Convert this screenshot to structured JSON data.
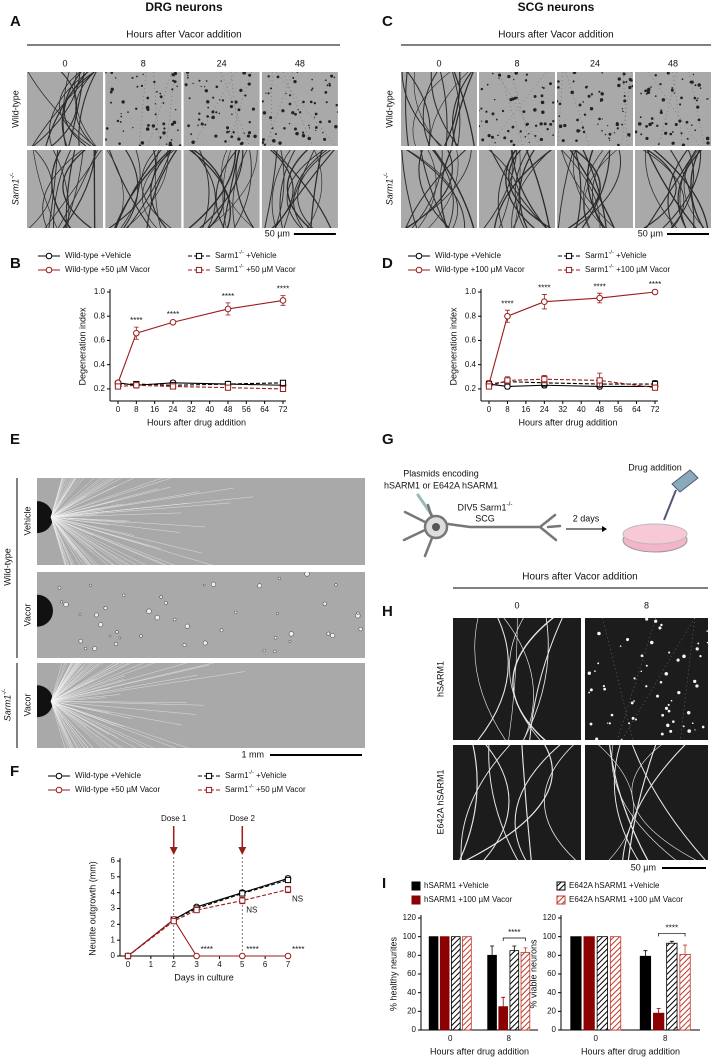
{
  "figure": {
    "panel_letters": [
      "A",
      "B",
      "C",
      "D",
      "E",
      "F",
      "G",
      "H",
      "I"
    ],
    "A": {
      "title": "DRG neurons",
      "header": "Hours after Vacor addition",
      "columns": [
        "0",
        "8",
        "24",
        "48"
      ],
      "rows": [
        "Wild-type",
        "Sarm1-/-"
      ],
      "scale_bar": "50 µm"
    },
    "C": {
      "title": "SCG neurons",
      "header": "Hours after Vacor addition",
      "columns": [
        "0",
        "8",
        "24",
        "48"
      ],
      "rows": [
        "Wild-type",
        "Sarm1-/-"
      ],
      "scale_bar": "50 µm"
    },
    "E": {
      "group_label": "Wild-type",
      "rows": [
        "Vehicle",
        "Vacor",
        "Vacor"
      ],
      "knockout_label": "Sarm1-/-",
      "scale_bar": "1 mm"
    },
    "G": {
      "plasmid_lines": [
        "Plasmids encoding",
        "hSARM1 or E642A hSARM1"
      ],
      "cell_lines": [
        "DIV5 Sarm1-/-",
        "SCG"
      ],
      "step": "2 days",
      "end": "Drug addition"
    },
    "H": {
      "header": "Hours after Vacor addition",
      "columns": [
        "0",
        "8"
      ],
      "rows": [
        "hSARM1",
        "E642A hSARM1"
      ],
      "scale_bar": "50 µm"
    }
  },
  "chart_data": [
    {
      "type": "line",
      "xlabel": "Hours after drug addition",
      "ylabel": "Degeneration index",
      "x": [
        0,
        8,
        24,
        48,
        72
      ],
      "xlim": [
        0,
        72
      ],
      "xticks": [
        0,
        8,
        16,
        24,
        32,
        40,
        48,
        56,
        64,
        72
      ],
      "ylim": [
        0.1,
        1
      ],
      "yticks": [
        0.2,
        0.4,
        0.6,
        0.8,
        {
          "value": 1,
          "label": "1.0"
        }
      ],
      "series": [
        {
          "name": "Wild-type +Vehicle",
          "color": "#000000",
          "dash": false,
          "marker": "circle",
          "values": [
            0.25,
            0.23,
            0.25,
            0.24,
            0.23
          ],
          "errors": [
            0.02,
            0.02,
            0.02,
            0.02,
            0.02
          ]
        },
        {
          "name": "Sarm1-/- +Vehicle",
          "color": "#000000",
          "dash": true,
          "marker": "square",
          "values": [
            0.24,
            0.24,
            0.23,
            0.24,
            0.25
          ],
          "errors": [
            0.02,
            0.02,
            0.02,
            0.02,
            0.02
          ]
        },
        {
          "name": "Wild-type +50 µM Vacor",
          "color": "#9b1c1c",
          "dash": false,
          "marker": "circle",
          "values": [
            0.25,
            0.66,
            0.75,
            0.86,
            0.93
          ],
          "errors": [
            0.02,
            0.05,
            0.01,
            0.05,
            0.04
          ]
        },
        {
          "name": "Sarm1-/- +50 µM Vacor",
          "color": "#9b1c1c",
          "dash": true,
          "marker": "square",
          "values": [
            0.22,
            0.23,
            0.22,
            0.21,
            0.2
          ],
          "errors": [
            0.02,
            0.02,
            0.02,
            0.02,
            0.02
          ]
        }
      ],
      "annotations": [
        {
          "text": "****",
          "x": 8,
          "series": 2,
          "side": "above"
        },
        {
          "text": "****",
          "x": 24,
          "series": 2,
          "side": "above"
        },
        {
          "text": "****",
          "x": 48,
          "series": 2,
          "side": "above"
        },
        {
          "text": "****",
          "x": 72,
          "series": 2,
          "side": "above"
        }
      ]
    },
    {
      "type": "line",
      "xlabel": "Hours after drug addition",
      "ylabel": "Degeneration index",
      "x": [
        0,
        8,
        24,
        48,
        72
      ],
      "xlim": [
        0,
        72
      ],
      "xticks": [
        0,
        8,
        16,
        24,
        32,
        40,
        48,
        56,
        64,
        72
      ],
      "ylim": [
        0.1,
        1
      ],
      "yticks": [
        0.2,
        0.4,
        0.6,
        0.8,
        {
          "value": 1,
          "label": "1.0"
        }
      ],
      "series": [
        {
          "name": "Wild-type +Vehicle",
          "color": "#000000",
          "dash": false,
          "marker": "circle",
          "values": [
            0.24,
            0.22,
            0.23,
            0.22,
            0.22
          ],
          "errors": [
            0.02,
            0.02,
            0.02,
            0.02,
            0.02
          ]
        },
        {
          "name": "Sarm1-/- +Vehicle",
          "color": "#000000",
          "dash": true,
          "marker": "square",
          "values": [
            0.24,
            0.26,
            0.25,
            0.24,
            0.24
          ],
          "errors": [
            0.02,
            0.02,
            0.03,
            0.02,
            0.03
          ]
        },
        {
          "name": "Wild-type +100 µM Vacor",
          "color": "#9b1c1c",
          "dash": false,
          "marker": "circle",
          "values": [
            0.24,
            0.8,
            0.92,
            0.95,
            1
          ],
          "errors": [
            0.03,
            0.05,
            0.06,
            0.04,
            0.01
          ]
        },
        {
          "name": "Sarm1-/- +100 µM Vacor",
          "color": "#9b1c1c",
          "dash": true,
          "marker": "square",
          "values": [
            0.22,
            0.27,
            0.28,
            0.27,
            0.21
          ],
          "errors": [
            0.02,
            0.03,
            0.03,
            0.06,
            0.02
          ]
        }
      ],
      "annotations": [
        {
          "text": "****",
          "x": 8,
          "series": 2,
          "side": "above"
        },
        {
          "text": "****",
          "x": 24,
          "series": 2,
          "side": "above"
        },
        {
          "text": "****",
          "x": 48,
          "series": 2,
          "side": "above"
        },
        {
          "text": "****",
          "x": 72,
          "series": 2,
          "side": "above"
        }
      ]
    },
    {
      "type": "line",
      "xlabel": "Days in culture",
      "ylabel": "Neurite outgrowth (mm)",
      "x": [
        0,
        2,
        3,
        5,
        7
      ],
      "xlim": [
        0,
        7
      ],
      "xticks": [
        0,
        1,
        2,
        3,
        4,
        5,
        6,
        7
      ],
      "ylim": [
        0,
        6
      ],
      "yticks": [
        0,
        1,
        2,
        3,
        4,
        5,
        6
      ],
      "doses": [
        {
          "label": "Dose 1",
          "x": 2,
          "color": "#9b1c1c"
        },
        {
          "label": "Dose 2",
          "x": 5,
          "color": "#9b1c1c"
        }
      ],
      "series": [
        {
          "name": "Wild-type +Vehicle",
          "color": "#000000",
          "dash": false,
          "marker": "circle",
          "values": [
            0,
            2.3,
            3.1,
            4,
            4.9
          ],
          "errors": [
            0,
            0.1,
            0.1,
            0.15,
            0.15
          ]
        },
        {
          "name": "Sarm1-/- +Vehicle",
          "color": "#000000",
          "dash": true,
          "marker": "square",
          "values": [
            0,
            2.3,
            3,
            3.95,
            4.8
          ],
          "errors": [
            0,
            0.1,
            0.1,
            0.15,
            0.15
          ]
        },
        {
          "name": "Wild-type +50 µM Vacor",
          "color": "#9b1c1c",
          "dash": false,
          "marker": "circle",
          "values": [
            0,
            2.3,
            0,
            0,
            0
          ],
          "errors": [
            0,
            0.1,
            0,
            0,
            0
          ]
        },
        {
          "name": "Sarm1-/- +50 µM Vacor",
          "color": "#9b1c1c",
          "dash": true,
          "marker": "square",
          "values": [
            0,
            2.2,
            2.9,
            3.5,
            4.2
          ],
          "errors": [
            0,
            0.1,
            0.1,
            0.2,
            0.2
          ]
        }
      ],
      "annotations": [
        {
          "text": "****",
          "x": 3,
          "series": 2,
          "side": "above"
        },
        {
          "text": "****",
          "x": 5,
          "series": 2,
          "side": "above"
        },
        {
          "text": "****",
          "x": 7,
          "series": 2,
          "side": "above"
        },
        {
          "text": "NS",
          "x": 5,
          "series": 3,
          "side": "below"
        },
        {
          "text": "NS",
          "x": 7,
          "series": 3,
          "side": "below"
        }
      ]
    },
    {
      "type": "bar",
      "xlabel": "Hours after drug addition",
      "ylabel": "% healthy neurites",
      "categories": [
        "0",
        "8"
      ],
      "ylim": [
        0,
        120
      ],
      "yticks": [
        0,
        20,
        40,
        60,
        80,
        100,
        120
      ],
      "series": [
        {
          "name": "hSARM1 +Vehicle",
          "color": "#000000",
          "fill": "solid",
          "values": [
            100,
            80
          ],
          "errors": [
            0,
            10
          ]
        },
        {
          "name": "hSARM1 +100 µM Vacor",
          "color": "#8b0000",
          "fill": "solid",
          "values": [
            100,
            25
          ],
          "errors": [
            0,
            10
          ]
        },
        {
          "name": "E642A hSARM1 +Vehicle",
          "color": "#000000",
          "fill": "hatched",
          "values": [
            100,
            85
          ],
          "errors": [
            0,
            5
          ]
        },
        {
          "name": "E642A hSARM1 +100 µM Vacor",
          "color": "#c0392b",
          "fill": "hatched",
          "values": [
            100,
            83
          ],
          "errors": [
            0,
            5
          ]
        }
      ],
      "annotations": [
        {
          "text": "****",
          "category": 1,
          "series": [
            1,
            3
          ]
        }
      ]
    },
    {
      "type": "bar",
      "xlabel": "Hours after drug addition",
      "ylabel": "% viable neurons",
      "categories": [
        "0",
        "8"
      ],
      "ylim": [
        0,
        120
      ],
      "yticks": [
        0,
        20,
        40,
        60,
        80,
        100,
        120
      ],
      "series": [
        {
          "color": "#000000",
          "fill": "solid",
          "values": [
            100,
            79
          ],
          "errors": [
            0,
            6
          ]
        },
        {
          "color": "#8b0000",
          "fill": "solid",
          "values": [
            100,
            18
          ],
          "errors": [
            0,
            5
          ]
        },
        {
          "color": "#000000",
          "fill": "hatched",
          "values": [
            100,
            93
          ],
          "errors": [
            0,
            2
          ]
        },
        {
          "color": "#c0392b",
          "fill": "hatched",
          "values": [
            100,
            81
          ],
          "errors": [
            0,
            10
          ]
        }
      ],
      "annotations": [
        {
          "text": "****",
          "category": 1,
          "series": [
            1,
            3
          ]
        }
      ]
    }
  ]
}
